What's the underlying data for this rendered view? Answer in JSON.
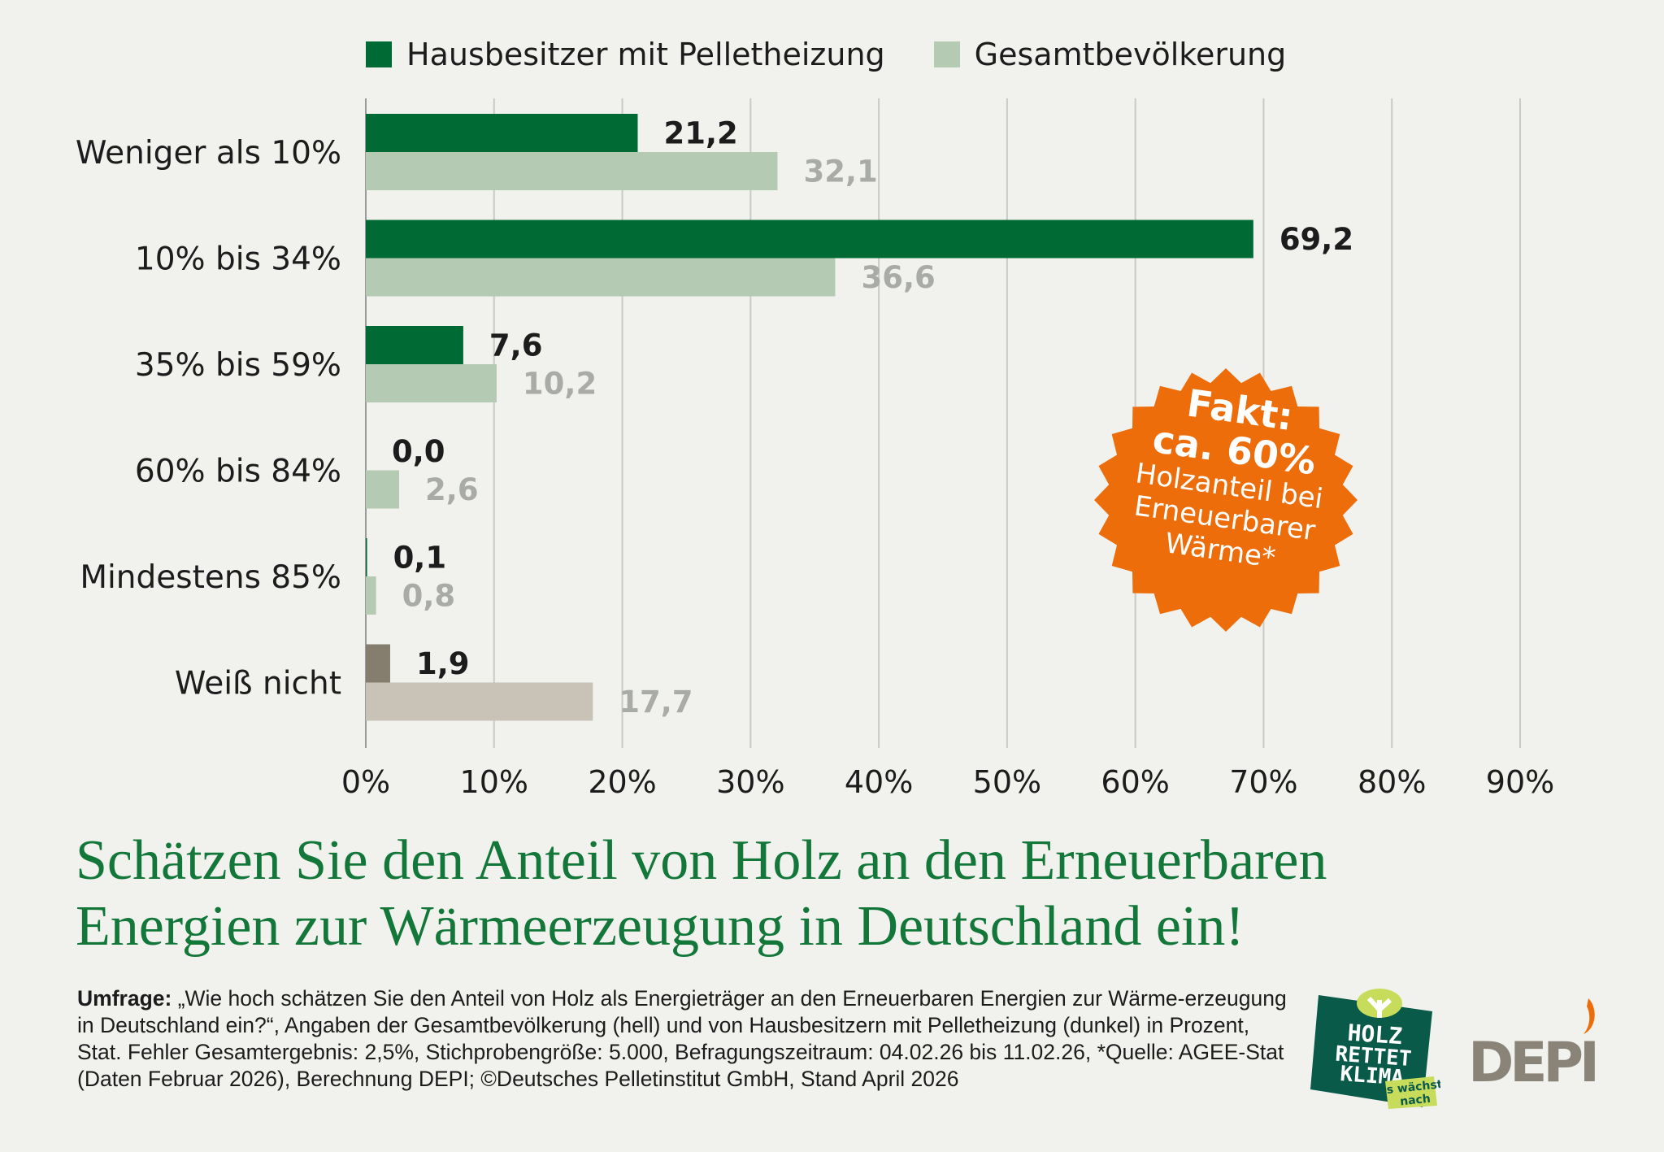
{
  "chart_data": {
    "type": "bar",
    "orientation": "horizontal",
    "title": "Schätzen Sie den Anteil von Holz an den Erneuerbaren Energien zur Wärmeerzeugung in Deutschland ein!",
    "title_lines": [
      "Schätzen Sie den Anteil von Holz an den Erneuerbaren",
      "Energien zur Wärmeerzeugung in Deutschland ein!"
    ],
    "categories": [
      "Weniger als 10%",
      "10% bis 34%",
      "35% bis 59%",
      "60% bis 84%",
      "Mindestens 85%",
      "Weiß nicht"
    ],
    "series": [
      {
        "name": "Hausbesitzer mit Pelletheizung",
        "color": "#006a35",
        "values": [
          21.2,
          69.2,
          7.6,
          0.0,
          0.1,
          1.9
        ],
        "labels": [
          "21,2",
          "69,2",
          "7,6",
          "0,0",
          "0,1",
          "1,9"
        ]
      },
      {
        "name": "Gesamtbevölkerung",
        "color": "#b5cab3",
        "values": [
          32.1,
          36.6,
          10.2,
          2.6,
          0.8,
          17.7
        ],
        "labels": [
          "32,1",
          "36,6",
          "10,2",
          "2,6",
          "0,8",
          "17,7"
        ]
      }
    ],
    "special_colors": {
      "Weiß nicht": [
        "#857d6e",
        "#c8c3b6"
      ]
    },
    "xlim": [
      0,
      90
    ],
    "xticks": [
      "0%",
      "10%",
      "20%",
      "30%",
      "40%",
      "50%",
      "60%",
      "70%",
      "80%",
      "90%"
    ],
    "grid": true,
    "legend": "top"
  },
  "badge": {
    "line1": "Fakt:",
    "line2": "ca. 60%",
    "line3": "Holzanteil bei",
    "line4": "Erneuerbarer",
    "line5": "Wärme*",
    "color": "#ec6d0a"
  },
  "footer": {
    "label": "Umfrage:",
    "text": " „Wie hoch schätzen Sie den Anteil von Holz als Energieträger an den Erneuerbaren Energien zur Wärme-erzeugung in Deutschland ein?“, Angaben der Gesamtbevölkerung (hell) und von Hausbesitzern mit Pelletheizung (dunkel) in Prozent, Stat. Fehler Gesamtergebnis: 2,5%, Stichprobengröße: 5.000, Befragungszeitraum: 04.02.26 bis 11.02.26, *Quelle: AGEE-Stat (Daten Februar 2026), Berechnung DEPI; ©Deutsches Pelletinstitut GmbH, Stand April 2026"
  },
  "logos": {
    "holz": [
      "HOLZ",
      "RETTET",
      "KLIMA",
      "Es wächst",
      "nach"
    ],
    "depi": "DEPI"
  }
}
